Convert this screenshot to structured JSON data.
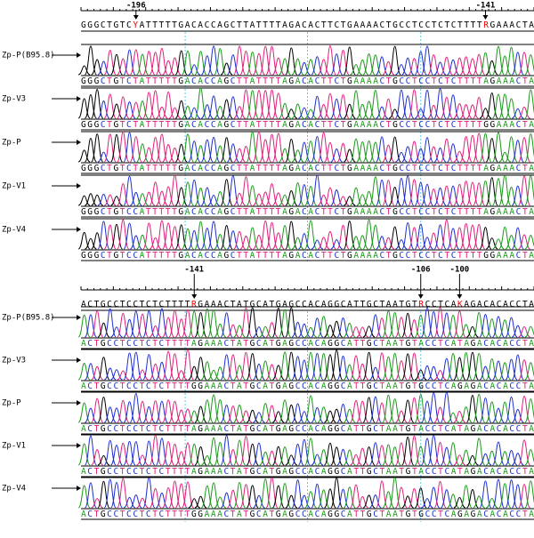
{
  "panels": [
    {
      "markers": [
        "-196",
        "-141"
      ],
      "reference": "GGGCTGTCYATTTTTGACACCAGCTTATTTTAGACACTTCTGAAAACTGCCTCCTCTCTTTTRGAAACTA",
      "samples": [
        {
          "name": "Zp-P(B95.8)",
          "sequence": "GGGCTGTCTATTTTTGACACCAGCTTATTTTAGACACTTCTGAAAACTGCCTCCTCTCTTTTAGAAACTA"
        },
        {
          "name": "Zp-V3",
          "sequence": "GGGCTGTCTATTTTTGACACCAGCTTATTTTAGACACTTCTGAAAACTGCCTCCTCTCTTTTGGAAACTA"
        },
        {
          "name": "Zp-P",
          "sequence": "GGGCTGTCTATTTTTGACACCAGCTTATTTTAGACACTTCTGAAAACTGCCTCCTCTCTTTTAGAAACTA"
        },
        {
          "name": "Zp-V1",
          "sequence": "GGGCTGTCCATTTTTGACACCAGCTTATTTTAGACACTTCTGAAAACTGCCTCCTCTCTTTTAGAAACTA"
        },
        {
          "name": "Zp-V4",
          "sequence": "GGGCTGTCCATTTTTGACACCAGCTTATTTTAGACACTTCTGAAAACTGCCTCCTCTCTTTTGGAAACTA"
        }
      ]
    },
    {
      "markers": [
        "-141",
        "-106",
        "-100"
      ],
      "reference": "ACTGCCTCCTCTCTTTTRGAAACTATGCATGAGCCACAGGCATTGCTAATGTRCCTCAKAGACACACCTA",
      "samples": [
        {
          "name": "Zp-P(B95.8)",
          "sequence": "ACTGCCTCCTCTCTTTTAGAAACTATGCATGAGCCACAGGCATTGCTAATGTACCTCATAGACACACCTA"
        },
        {
          "name": "Zp-V3",
          "sequence": "ACTGCCTCCTCTCTTTTGGAAACTATGCATGAGCCACAGGCATTGCTAATGTGCCTCAGAGACACACCTA"
        },
        {
          "name": "Zp-P",
          "sequence": "ACTGCCTCCTCTCTTTTAGAAACTATGCATGAGCCACAGGCATTGCTAATGTACCTCATAGACACACCTA"
        },
        {
          "name": "Zp-V1",
          "sequence": "ACTGCCTCCTCTCTTTTAGAAACTATGCATGAGCCACAGGCATTGCTAATGTACCTCATAGACACACCTA"
        },
        {
          "name": "Zp-V4",
          "sequence": "ACTGCCTCCTCTCTTTTGGAAACTATGCATGAGCCACAGGCATTGCTAATGTGCCTCAGAGACACACCTA"
        }
      ]
    }
  ]
}
